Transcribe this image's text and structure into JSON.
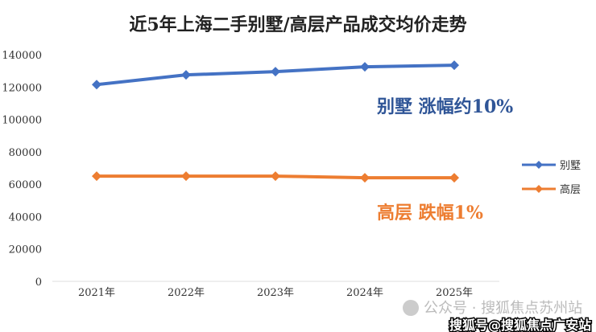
{
  "chart_data": {
    "type": "line",
    "title": "近5年上海二手别墅/高层产品成交均价走势",
    "categories": [
      "2021年",
      "2022年",
      "2023年",
      "2024年",
      "2025年"
    ],
    "yticks": [
      0,
      20000,
      40000,
      60000,
      80000,
      100000,
      120000,
      140000
    ],
    "ylim": [
      0,
      140000
    ],
    "series": [
      {
        "name": "别墅",
        "color": "#4472C4",
        "values": [
          121500,
          127500,
          129500,
          132500,
          133500
        ]
      },
      {
        "name": "高层",
        "color": "#ED7D31",
        "values": [
          65000,
          65000,
          65000,
          64000,
          64000
        ]
      }
    ],
    "annotations": [
      {
        "text": "别墅 涨幅约10%",
        "color": "#2F5597"
      },
      {
        "text": "高层 跌幅1%",
        "color": "#ED7D31"
      }
    ],
    "legend": "right",
    "grid": false
  },
  "watermarks": [
    "公众号 · 搜狐焦点苏州站",
    "搜狐号@搜狐焦点广安站"
  ]
}
